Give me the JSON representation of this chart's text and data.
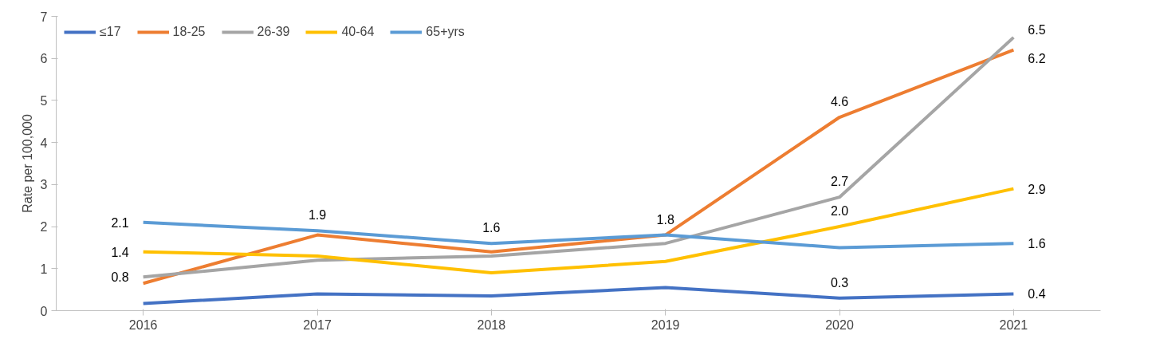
{
  "chart_data": {
    "type": "line",
    "ylabel": "Rate per 100,000",
    "categories": [
      "2016",
      "2017",
      "2018",
      "2019",
      "2020",
      "2021"
    ],
    "ylim": [
      0,
      7
    ],
    "yticks": [
      0,
      1,
      2,
      3,
      4,
      5,
      6,
      7
    ],
    "grid": false,
    "legend": "top left",
    "marker": "none",
    "line_style": "solid",
    "series": [
      {
        "name": "≤17",
        "color": "#4472c4",
        "values": [
          0.17,
          0.4,
          0.35,
          0.55,
          0.3,
          0.4
        ],
        "value_labels": [
          null,
          null,
          null,
          null,
          "0.3",
          "0.4"
        ]
      },
      {
        "name": "18-25",
        "color": "#ed7d31",
        "values": [
          0.65,
          1.8,
          1.4,
          1.8,
          4.6,
          6.2
        ],
        "value_labels": [
          null,
          null,
          null,
          null,
          "4.6",
          "6.2"
        ]
      },
      {
        "name": "26-39",
        "color": "#a5a5a5",
        "values": [
          0.8,
          1.2,
          1.3,
          1.6,
          2.7,
          6.5
        ],
        "value_labels": [
          "0.8",
          null,
          null,
          null,
          "2.7",
          "6.5"
        ]
      },
      {
        "name": "40-64",
        "color": "#ffc000",
        "values": [
          1.4,
          1.3,
          0.9,
          1.17,
          2.0,
          2.9
        ],
        "value_labels": [
          "1.4",
          null,
          null,
          null,
          "2.0",
          "2.9"
        ]
      },
      {
        "name": "65+yrs",
        "color": "#5b9bd5",
        "values": [
          2.1,
          1.9,
          1.6,
          1.8,
          1.5,
          1.6
        ],
        "value_labels": [
          "2.1",
          "1.9",
          "1.6",
          "1.8",
          null,
          "1.6"
        ]
      }
    ]
  }
}
